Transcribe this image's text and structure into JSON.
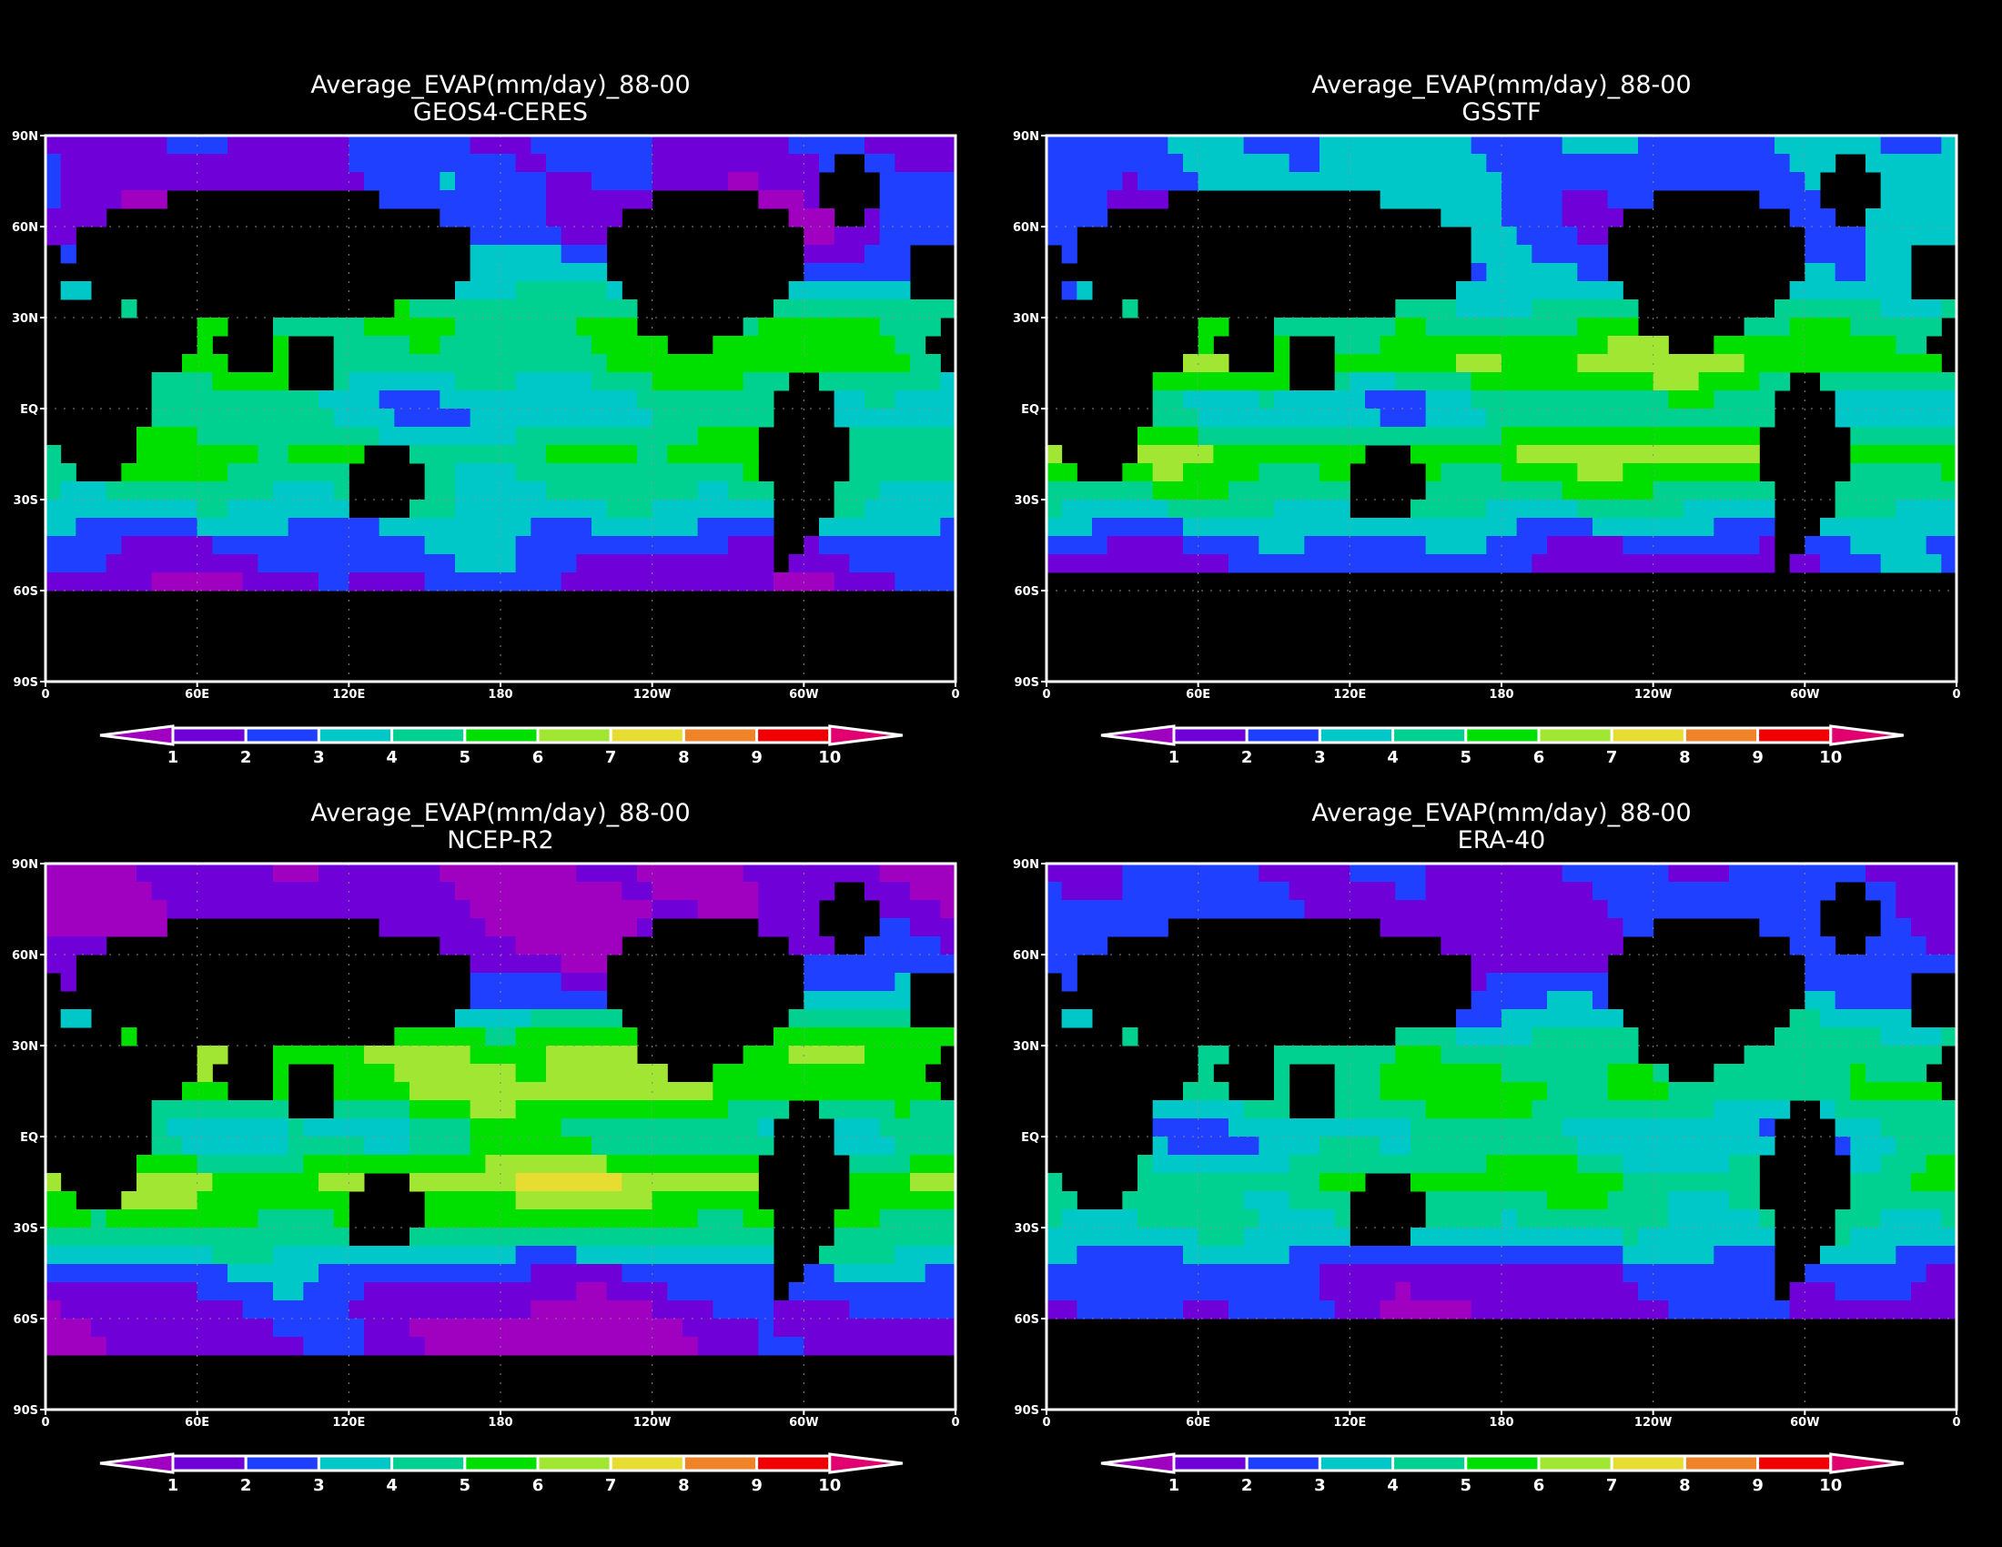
{
  "chart_data": [
    {
      "type": "heatmap",
      "title": "Average_EVAP(mm/day)_88-00",
      "subtitle": "GEOS4-CERES",
      "zonal_estimate": {
        "lat": [
          75,
          60,
          45,
          30,
          15,
          0,
          -15,
          -30,
          -45,
          -60
        ],
        "values": [
          2,
          1.5,
          3,
          5,
          5,
          3.5,
          5,
          4,
          2.5,
          1.5
        ]
      },
      "data_south_limit": -60
    },
    {
      "type": "heatmap",
      "title": "Average_EVAP(mm/day)_88-00",
      "subtitle": "GSSTF",
      "zonal_estimate": {
        "lat": [
          75,
          60,
          45,
          30,
          15,
          0,
          -15,
          -30,
          -45,
          -60
        ],
        "values": [
          3,
          2.5,
          3,
          4.5,
          6,
          3.5,
          6,
          4.5,
          2.5,
          1.5
        ]
      },
      "data_south_limit": -55
    },
    {
      "type": "heatmap",
      "title": "Average_EVAP(mm/day)_88-00",
      "subtitle": "NCEP-R2",
      "zonal_estimate": {
        "lat": [
          75,
          60,
          45,
          30,
          15,
          0,
          -15,
          -30,
          -45,
          -60
        ],
        "values": [
          1,
          1.5,
          3,
          6,
          6,
          4,
          6.5,
          5,
          2.5,
          1.2
        ]
      },
      "data_south_limit": -75
    },
    {
      "type": "heatmap",
      "title": "Average_EVAP(mm/day)_88-00",
      "subtitle": "ERA-40",
      "zonal_estimate": {
        "lat": [
          75,
          60,
          45,
          30,
          15,
          0,
          -15,
          -30,
          -45,
          -60
        ],
        "values": [
          2,
          2,
          3,
          4.5,
          5,
          3.5,
          5,
          4,
          2,
          1.5
        ]
      },
      "data_south_limit": -60
    }
  ],
  "axes": {
    "y_ticks": [
      "90N",
      "60N",
      "30N",
      "EQ",
      "30S",
      "60S",
      "90S"
    ],
    "x_ticks": [
      "0",
      "60E",
      "120E",
      "180",
      "120W",
      "60W",
      "0"
    ],
    "xlim": [
      0,
      360
    ],
    "ylim": [
      -90,
      90
    ]
  },
  "colorbar": {
    "levels": [
      "1",
      "2",
      "3",
      "4",
      "5",
      "6",
      "7",
      "8",
      "9",
      "10"
    ],
    "colors": [
      "#a000c0",
      "#7000d8",
      "#2040ff",
      "#00c8c8",
      "#00d090",
      "#00e000",
      "#a0e632",
      "#e6dc32",
      "#f08228",
      "#f00000",
      "#e00070"
    ]
  }
}
